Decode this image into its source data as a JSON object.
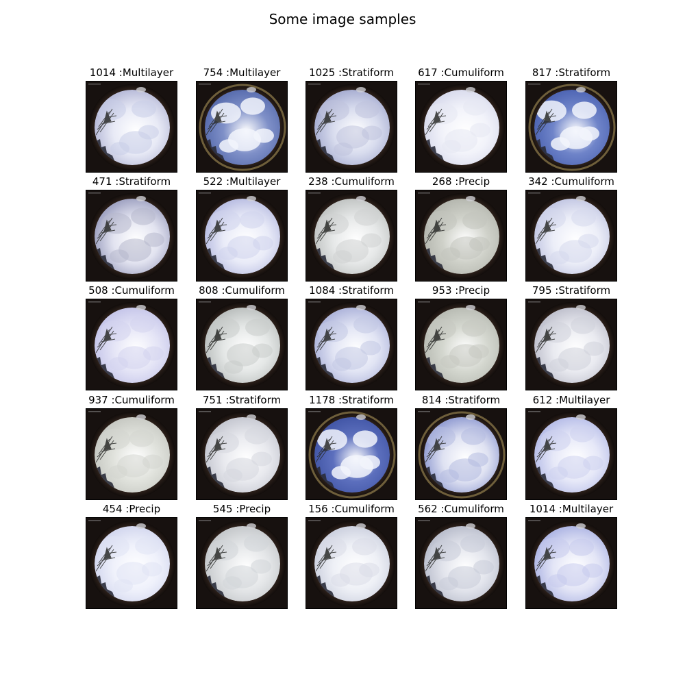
{
  "figure": {
    "title": "Some image samples"
  },
  "samples": [
    {
      "label": "1014 :Multilayer",
      "sky": "#e8eaf6",
      "cloud": "#c9cde8",
      "blue": 0.15,
      "tint": "#b9bcd9",
      "glare": false
    },
    {
      "label": "754 :Multilayer",
      "sky": "#7f90c8",
      "cloud": "#d2d6e6",
      "blue": 0.65,
      "tint": "#5a6eaf",
      "glare": true
    },
    {
      "label": "1025 :Stratiform",
      "sky": "#d8dcee",
      "cloud": "#bfc2dc",
      "blue": 0.25,
      "tint": "#a9afd2",
      "glare": false
    },
    {
      "label": "617 :Cumuliform",
      "sky": "#f2f3fa",
      "cloud": "#e6e8f2",
      "blue": 0.05,
      "tint": "#dadced",
      "glare": false
    },
    {
      "label": "817 :Stratiform",
      "sky": "#6f84c9",
      "cloud": "#eef0f8",
      "blue": 0.7,
      "tint": "#4f66b4",
      "glare": true
    },
    {
      "label": "471 :Stratiform",
      "sky": "#e2e3f0",
      "cloud": "#b7b8cc",
      "blue": 0.2,
      "tint": "#a3a6c4",
      "glare": false
    },
    {
      "label": "522 :Multilayer",
      "sky": "#e9ebf8",
      "cloud": "#d0d3ec",
      "blue": 0.15,
      "tint": "#bcc0e3",
      "glare": false
    },
    {
      "label": "238 :Cumuliform",
      "sky": "#e6e8e8",
      "cloud": "#cfd2d2",
      "blue": 0.0,
      "tint": "#c3c6c5",
      "glare": false
    },
    {
      "label": "268 :Precip",
      "sky": "#cfd1c9",
      "cloud": "#c3c5bd",
      "blue": 0.0,
      "tint": "#b6b8b0",
      "glare": false
    },
    {
      "label": "342 :Cumuliform",
      "sky": "#eceef8",
      "cloud": "#d6d9ec",
      "blue": 0.1,
      "tint": "#c5c9e4",
      "glare": false
    },
    {
      "label": "508 :Cumuliform",
      "sky": "#e4e4f6",
      "cloud": "#d4d4ee",
      "blue": 0.15,
      "tint": "#c7c7ea",
      "glare": false
    },
    {
      "label": "808 :Cumuliform",
      "sky": "#e4e7e6",
      "cloud": "#c8cccb",
      "blue": 0.0,
      "tint": "#bdc1c0",
      "glare": false
    },
    {
      "label": "1084 :Stratiform",
      "sky": "#e1e4f4",
      "cloud": "#c3c8e3",
      "blue": 0.2,
      "tint": "#b1b7dc",
      "glare": false
    },
    {
      "label": "953 :Precip",
      "sky": "#d4d7cf",
      "cloud": "#c6c9c1",
      "blue": 0.0,
      "tint": "#babdb5",
      "glare": false
    },
    {
      "label": "795 :Stratiform",
      "sky": "#e9eaf0",
      "cloud": "#d0d1da",
      "blue": 0.05,
      "tint": "#c2c3cf",
      "glare": false
    },
    {
      "label": "937 :Cumuliform",
      "sky": "#e0e2dc",
      "cloud": "#d3d5cf",
      "blue": 0.0,
      "tint": "#c8cac4",
      "glare": false
    },
    {
      "label": "751 :Stratiform",
      "sky": "#e8e9ee",
      "cloud": "#d5d7de",
      "blue": 0.05,
      "tint": "#c7c9d2",
      "glare": false
    },
    {
      "label": "1178 :Stratiform",
      "sky": "#5c6fbd",
      "cloud": "#e3e6f3",
      "blue": 0.75,
      "tint": "#4458a8",
      "glare": true
    },
    {
      "label": "814 :Stratiform",
      "sky": "#dfe2f2",
      "cloud": "#b4bbe0",
      "blue": 0.35,
      "tint": "#97a1d4",
      "glare": true
    },
    {
      "label": "612 :Multilayer",
      "sky": "#e6e8f8",
      "cloud": "#cdd1ef",
      "blue": 0.2,
      "tint": "#bac0e9",
      "glare": false
    },
    {
      "label": "454 :Precip",
      "sky": "#eff1fb",
      "cloud": "#e0e3f4",
      "blue": 0.1,
      "tint": "#d4d8ef",
      "glare": false
    },
    {
      "label": "545 :Precip",
      "sky": "#e4e6e8",
      "cloud": "#d2d5d8",
      "blue": 0.0,
      "tint": "#c6c9cc",
      "glare": false
    },
    {
      "label": "156 :Cumuliform",
      "sky": "#eef0f6",
      "cloud": "#dadde8",
      "blue": 0.05,
      "tint": "#ced2e0",
      "glare": false
    },
    {
      "label": "562 :Cumuliform",
      "sky": "#e2e4ec",
      "cloud": "#c9ccd8",
      "blue": 0.05,
      "tint": "#bcc0ce",
      "glare": false
    },
    {
      "label": "1014 :Multilayer",
      "sky": "#e3e5f6",
      "cloud": "#c6cbed",
      "blue": 0.2,
      "tint": "#b1b8e5",
      "glare": false
    }
  ]
}
